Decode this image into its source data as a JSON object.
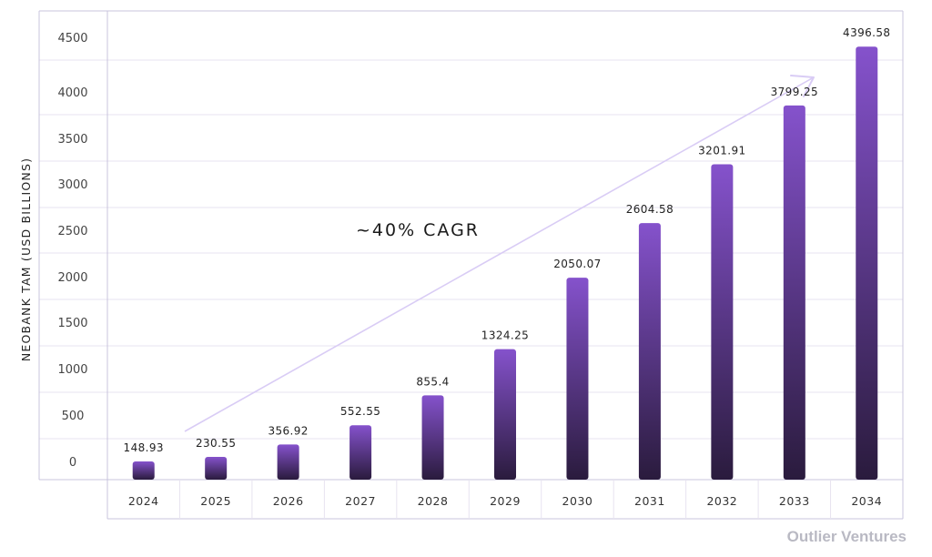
{
  "chart_data": {
    "type": "bar",
    "categories": [
      "2024",
      "2025",
      "2026",
      "2027",
      "2028",
      "2029",
      "2030",
      "2031",
      "2032",
      "2033",
      "2034"
    ],
    "values": [
      148.93,
      230.55,
      356.92,
      552.55,
      855.4,
      1324.25,
      2050.07,
      2604.58,
      3201.91,
      3799.25,
      4396.58
    ],
    "value_labels": [
      "148.93",
      "230.55",
      "356.92",
      "552.55",
      "855.4",
      "1324.25",
      "2050.07",
      "2604.58",
      "3201.91",
      "3799.25",
      "4396.58"
    ],
    "ylabel": "NEOBANK TAM (USD BILLIONS)",
    "xlabel": "",
    "ylim": [
      0,
      4500
    ],
    "yticks": [
      0,
      500,
      1000,
      1500,
      2000,
      2500,
      3000,
      3500,
      4000,
      4500
    ],
    "grid": true,
    "annotation": "~40% CAGR",
    "colors": {
      "bar_top": "#8552CC",
      "bar_bottom": "#2A1B3D",
      "grid": "#E7E3F0",
      "axis_border": "#C9C4DD",
      "trend_arrow": "#D9CCF5"
    }
  },
  "brand": "Outlier Ventures"
}
